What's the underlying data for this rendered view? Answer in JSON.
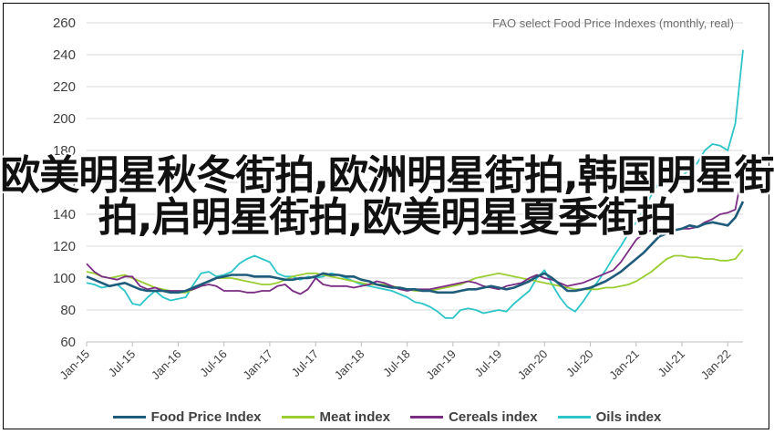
{
  "headline": "欧美明星秋冬街拍,欧洲明星街拍,韩国明星街拍,启明星街拍,欧美明星夏季街拍",
  "chart_data": {
    "type": "line",
    "title": "FAO select Food Price Indexes (monthly, real)",
    "xlabel": "",
    "ylabel": "",
    "ylim": [
      60,
      260
    ],
    "yticks": [
      60,
      80,
      100,
      120,
      140,
      160,
      180,
      200,
      220,
      240,
      260
    ],
    "xticks": [
      "Jan-15",
      "Jul-15",
      "Jan-16",
      "Jul-16",
      "Jan-17",
      "Jul-17",
      "Jan-18",
      "Jul-18",
      "Jan-19",
      "Jul-19",
      "Jan-20",
      "Jul-20",
      "Jan-21",
      "Jul-21",
      "Jan-22"
    ],
    "grid": "horizontal",
    "legend_position": "bottom",
    "series": [
      {
        "name": "Food Price Index",
        "color": "#1f5b7a",
        "values": [
          101,
          99,
          97,
          95,
          96,
          97,
          95,
          93,
          92,
          92,
          92,
          91,
          91,
          92,
          94,
          96,
          98,
          100,
          101,
          102,
          102,
          102,
          101,
          101,
          101,
          100,
          99,
          99,
          100,
          100,
          101,
          103,
          102,
          102,
          101,
          101,
          99,
          98,
          96,
          95,
          94,
          94,
          93,
          93,
          92,
          92,
          91,
          91,
          91,
          92,
          93,
          93,
          94,
          95,
          94,
          93,
          94,
          96,
          98,
          101,
          103,
          100,
          96,
          92,
          92,
          93,
          94,
          96,
          98,
          101,
          104,
          108,
          112,
          116,
          121,
          126,
          128,
          130,
          131,
          133,
          132,
          134,
          135,
          134,
          133,
          138,
          148
        ]
      },
      {
        "name": "Meat index",
        "color": "#9acd32",
        "values": [
          104,
          103,
          101,
          100,
          101,
          102,
          100,
          98,
          96,
          94,
          93,
          92,
          91,
          91,
          93,
          96,
          98,
          100,
          100,
          100,
          99,
          98,
          97,
          96,
          96,
          97,
          99,
          101,
          102,
          103,
          103,
          102,
          101,
          100,
          99,
          98,
          97,
          96,
          96,
          96,
          95,
          94,
          93,
          92,
          92,
          92,
          93,
          94,
          95,
          96,
          98,
          100,
          101,
          102,
          103,
          102,
          101,
          100,
          99,
          98,
          97,
          96,
          95,
          94,
          93,
          93,
          93,
          93,
          94,
          94,
          95,
          96,
          98,
          101,
          104,
          108,
          112,
          114,
          114,
          113,
          113,
          112,
          112,
          111,
          111,
          112,
          118
        ]
      },
      {
        "name": "Cereals index",
        "color": "#7b2c83",
        "values": [
          109,
          104,
          101,
          100,
          99,
          101,
          101,
          95,
          93,
          94,
          92,
          92,
          92,
          92,
          93,
          95,
          96,
          95,
          92,
          92,
          92,
          91,
          91,
          92,
          92,
          95,
          96,
          92,
          90,
          93,
          100,
          96,
          95,
          95,
          95,
          94,
          95,
          96,
          98,
          97,
          95,
          93,
          92,
          93,
          93,
          93,
          94,
          95,
          96,
          97,
          98,
          97,
          95,
          94,
          93,
          95,
          96,
          97,
          100,
          102,
          100,
          99,
          97,
          95,
          96,
          97,
          99,
          101,
          103,
          105,
          110,
          117,
          124,
          128,
          130,
          129,
          128,
          130,
          131,
          131,
          132,
          135,
          137,
          140,
          141,
          143,
          168
        ]
      },
      {
        "name": "Oils index",
        "color": "#2ec5c8",
        "values": [
          97,
          96,
          94,
          95,
          96,
          92,
          84,
          83,
          88,
          92,
          88,
          86,
          87,
          88,
          96,
          103,
          104,
          101,
          102,
          104,
          109,
          112,
          114,
          112,
          110,
          103,
          101,
          101,
          99,
          101,
          100,
          101,
          103,
          102,
          100,
          98,
          96,
          95,
          94,
          93,
          92,
          90,
          88,
          85,
          84,
          82,
          79,
          75,
          75,
          80,
          81,
          80,
          78,
          79,
          80,
          79,
          84,
          88,
          92,
          100,
          105,
          96,
          88,
          82,
          79,
          85,
          92,
          98,
          105,
          113,
          120,
          128,
          135,
          143,
          152,
          160,
          170,
          172,
          164,
          168,
          172,
          180,
          184,
          183,
          180,
          197,
          243
        ]
      }
    ]
  }
}
